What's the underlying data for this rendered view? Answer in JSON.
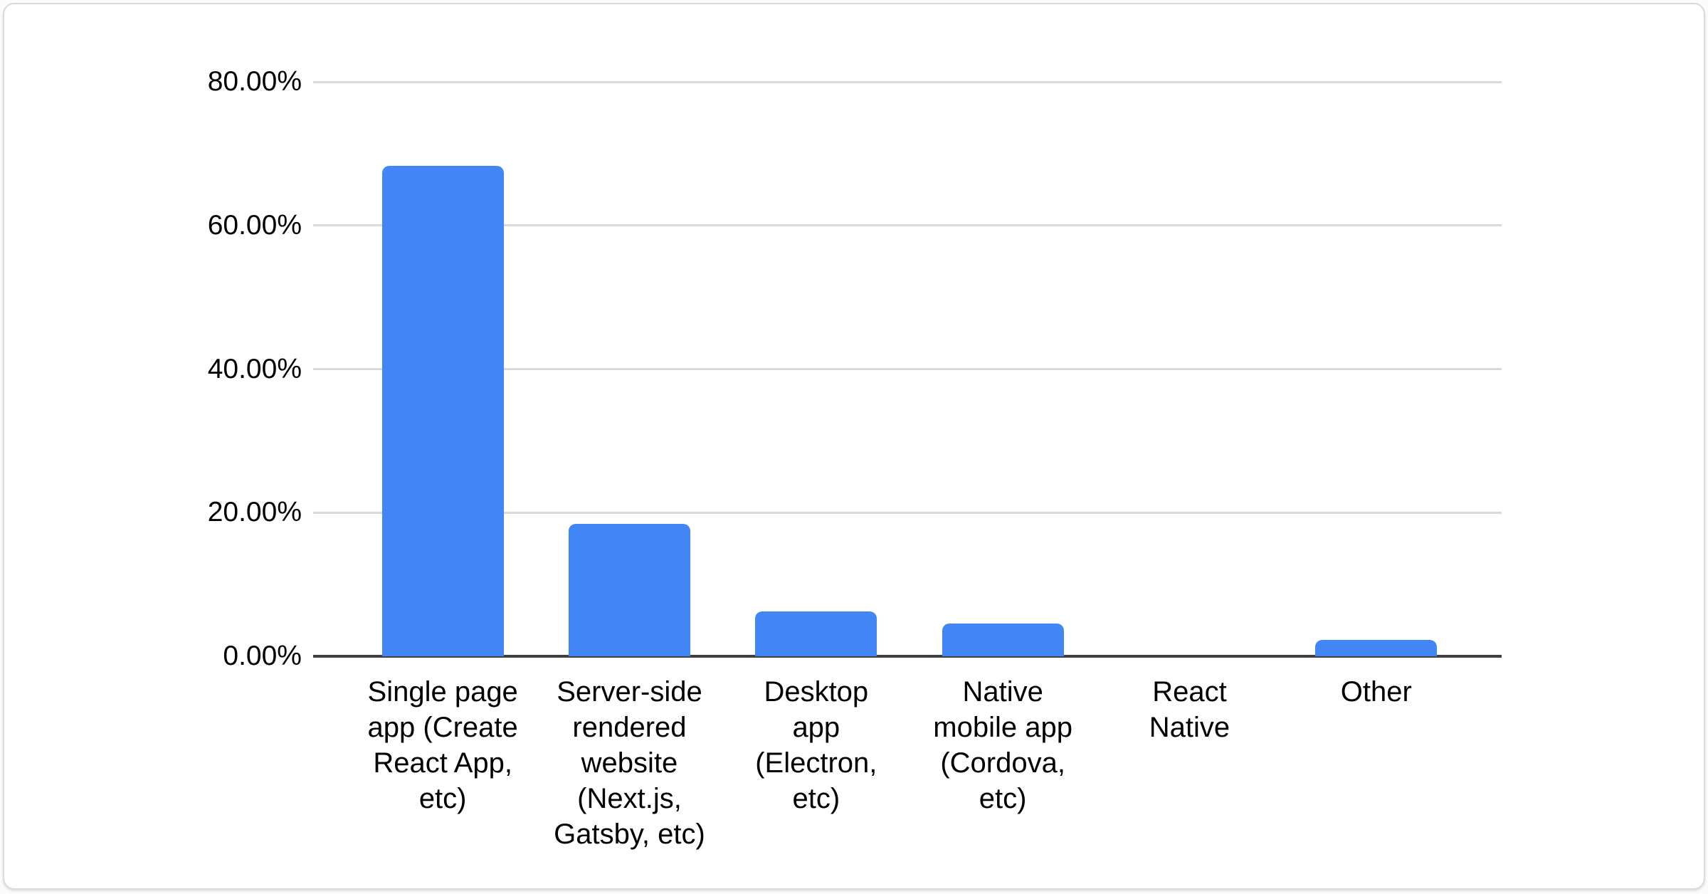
{
  "chart_data": {
    "type": "bar",
    "title": "",
    "xlabel": "",
    "ylabel": "",
    "unit": "%",
    "categories": [
      "Single page app (Create React App, etc)",
      "Server-side rendered website (Next.js, Gatsby, etc)",
      "Desktop app (Electron, etc)",
      "Native mobile app (Cordova, etc)",
      "React Native",
      "Other"
    ],
    "category_lines": [
      [
        "Single page",
        "app (Create",
        "React App,",
        "etc)"
      ],
      [
        "Server-side",
        "rendered",
        "website",
        "(Next.js,",
        "Gatsby, etc)"
      ],
      [
        "Desktop",
        "app",
        "(Electron,",
        "etc)"
      ],
      [
        "Native",
        "mobile app",
        "(Cordova,",
        "etc)"
      ],
      [
        "React",
        "Native"
      ],
      [
        "Other"
      ]
    ],
    "category_slugs": [
      "single-page-app",
      "server-side-rendered-website",
      "desktop-app",
      "native-mobile-app",
      "react-native",
      "other"
    ],
    "values": [
      68.3,
      18.4,
      6.2,
      4.6,
      0,
      2.3
    ],
    "ylim": [
      0,
      80
    ],
    "ytick_values": [
      0,
      20,
      40,
      60,
      80
    ],
    "ytick_labels": [
      "0.00%",
      "20.00%",
      "40.00%",
      "60.00%",
      "80.00%"
    ],
    "grid": true,
    "legend": false
  },
  "colors": {
    "bar": "#4285f4",
    "gridline": "#d9d9d9",
    "axis_line": "#3f3f3f",
    "text": "#000000",
    "card_background": "#ffffff",
    "card_border": "#d8dadd"
  }
}
